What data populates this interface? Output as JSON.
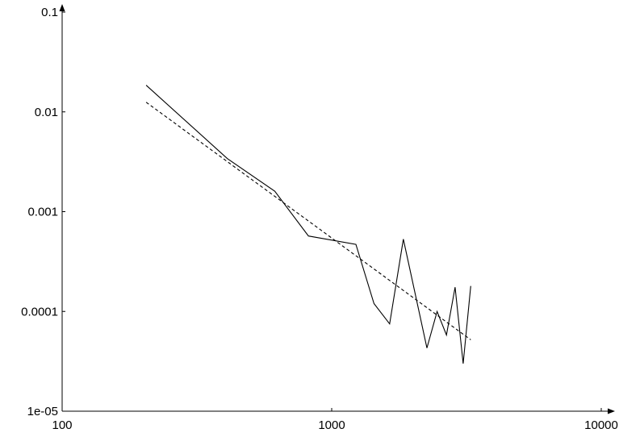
{
  "chart_data": {
    "type": "line",
    "title": "",
    "xlabel": "",
    "ylabel": "",
    "x_scale": "log",
    "y_scale": "log",
    "xlim": [
      100,
      10000
    ],
    "ylim": [
      1e-05,
      0.1
    ],
    "grid": false,
    "x_ticks": [
      100,
      1000,
      10000
    ],
    "x_tick_labels": [
      "100",
      "1000",
      "10000"
    ],
    "y_ticks": [
      1e-05,
      0.0001,
      0.001,
      0.01,
      0.1
    ],
    "y_tick_labels": [
      "1e-05",
      "0.0001",
      "0.001",
      "0.01",
      "0.1"
    ],
    "series": [
      {
        "style": "solid",
        "color": "#000000",
        "x": [
          205,
          410,
          615,
          820,
          1230,
          1435,
          1640,
          1845,
          2255,
          2460,
          2665,
          2870,
          3075,
          3280
        ],
        "y": [
          0.0185,
          0.0034,
          0.0016,
          0.00057,
          0.00047,
          0.00012,
          7.5e-05,
          0.00053,
          4.3e-05,
          0.0001,
          5.8e-05,
          0.000175,
          3e-05,
          0.00018
        ]
      },
      {
        "style": "dashed",
        "color": "#000000",
        "x": [
          205,
          3280
        ],
        "y": [
          0.0125,
          5.2e-05
        ]
      }
    ]
  }
}
